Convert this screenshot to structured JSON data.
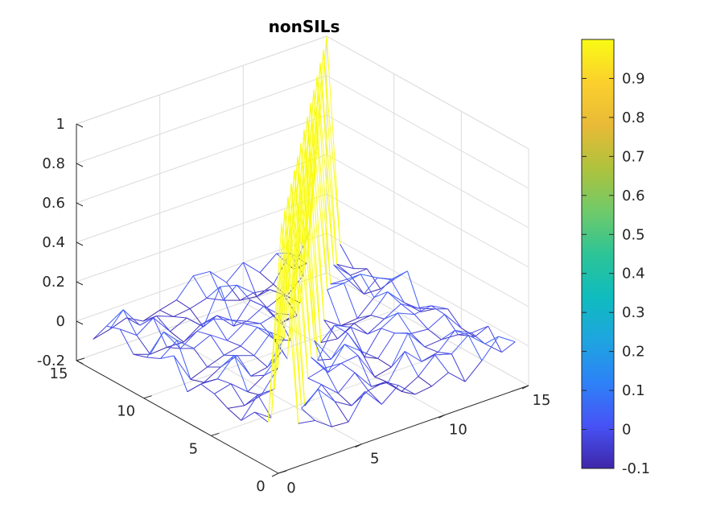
{
  "chart_data": {
    "type": "mesh",
    "title": "nonSILs",
    "xlabel": "",
    "ylabel": "",
    "zlabel": "",
    "xlim": [
      0,
      15
    ],
    "ylim": [
      0,
      15
    ],
    "zlim": [
      -0.2,
      1
    ],
    "x_ticks": [
      "0",
      "5",
      "10",
      "15"
    ],
    "y_ticks": [
      "0",
      "5",
      "10",
      "15"
    ],
    "z_ticks": [
      "-0.2",
      "0",
      "0.2",
      "0.4",
      "0.6",
      "0.8",
      "1"
    ],
    "grid": true,
    "colormap": "parula",
    "colorbar": {
      "limits": [
        -0.1,
        1.0
      ],
      "ticks": [
        "-0.1",
        "0",
        "0.1",
        "0.2",
        "0.3",
        "0.4",
        "0.5",
        "0.6",
        "0.7",
        "0.8",
        "0.9"
      ]
    },
    "grid_size": 15,
    "diagonal_value": 1,
    "off_diagonal_range": [
      -0.15,
      0.15
    ],
    "colors": {
      "axis": "#262626",
      "grid": "#dcdcdc"
    }
  }
}
